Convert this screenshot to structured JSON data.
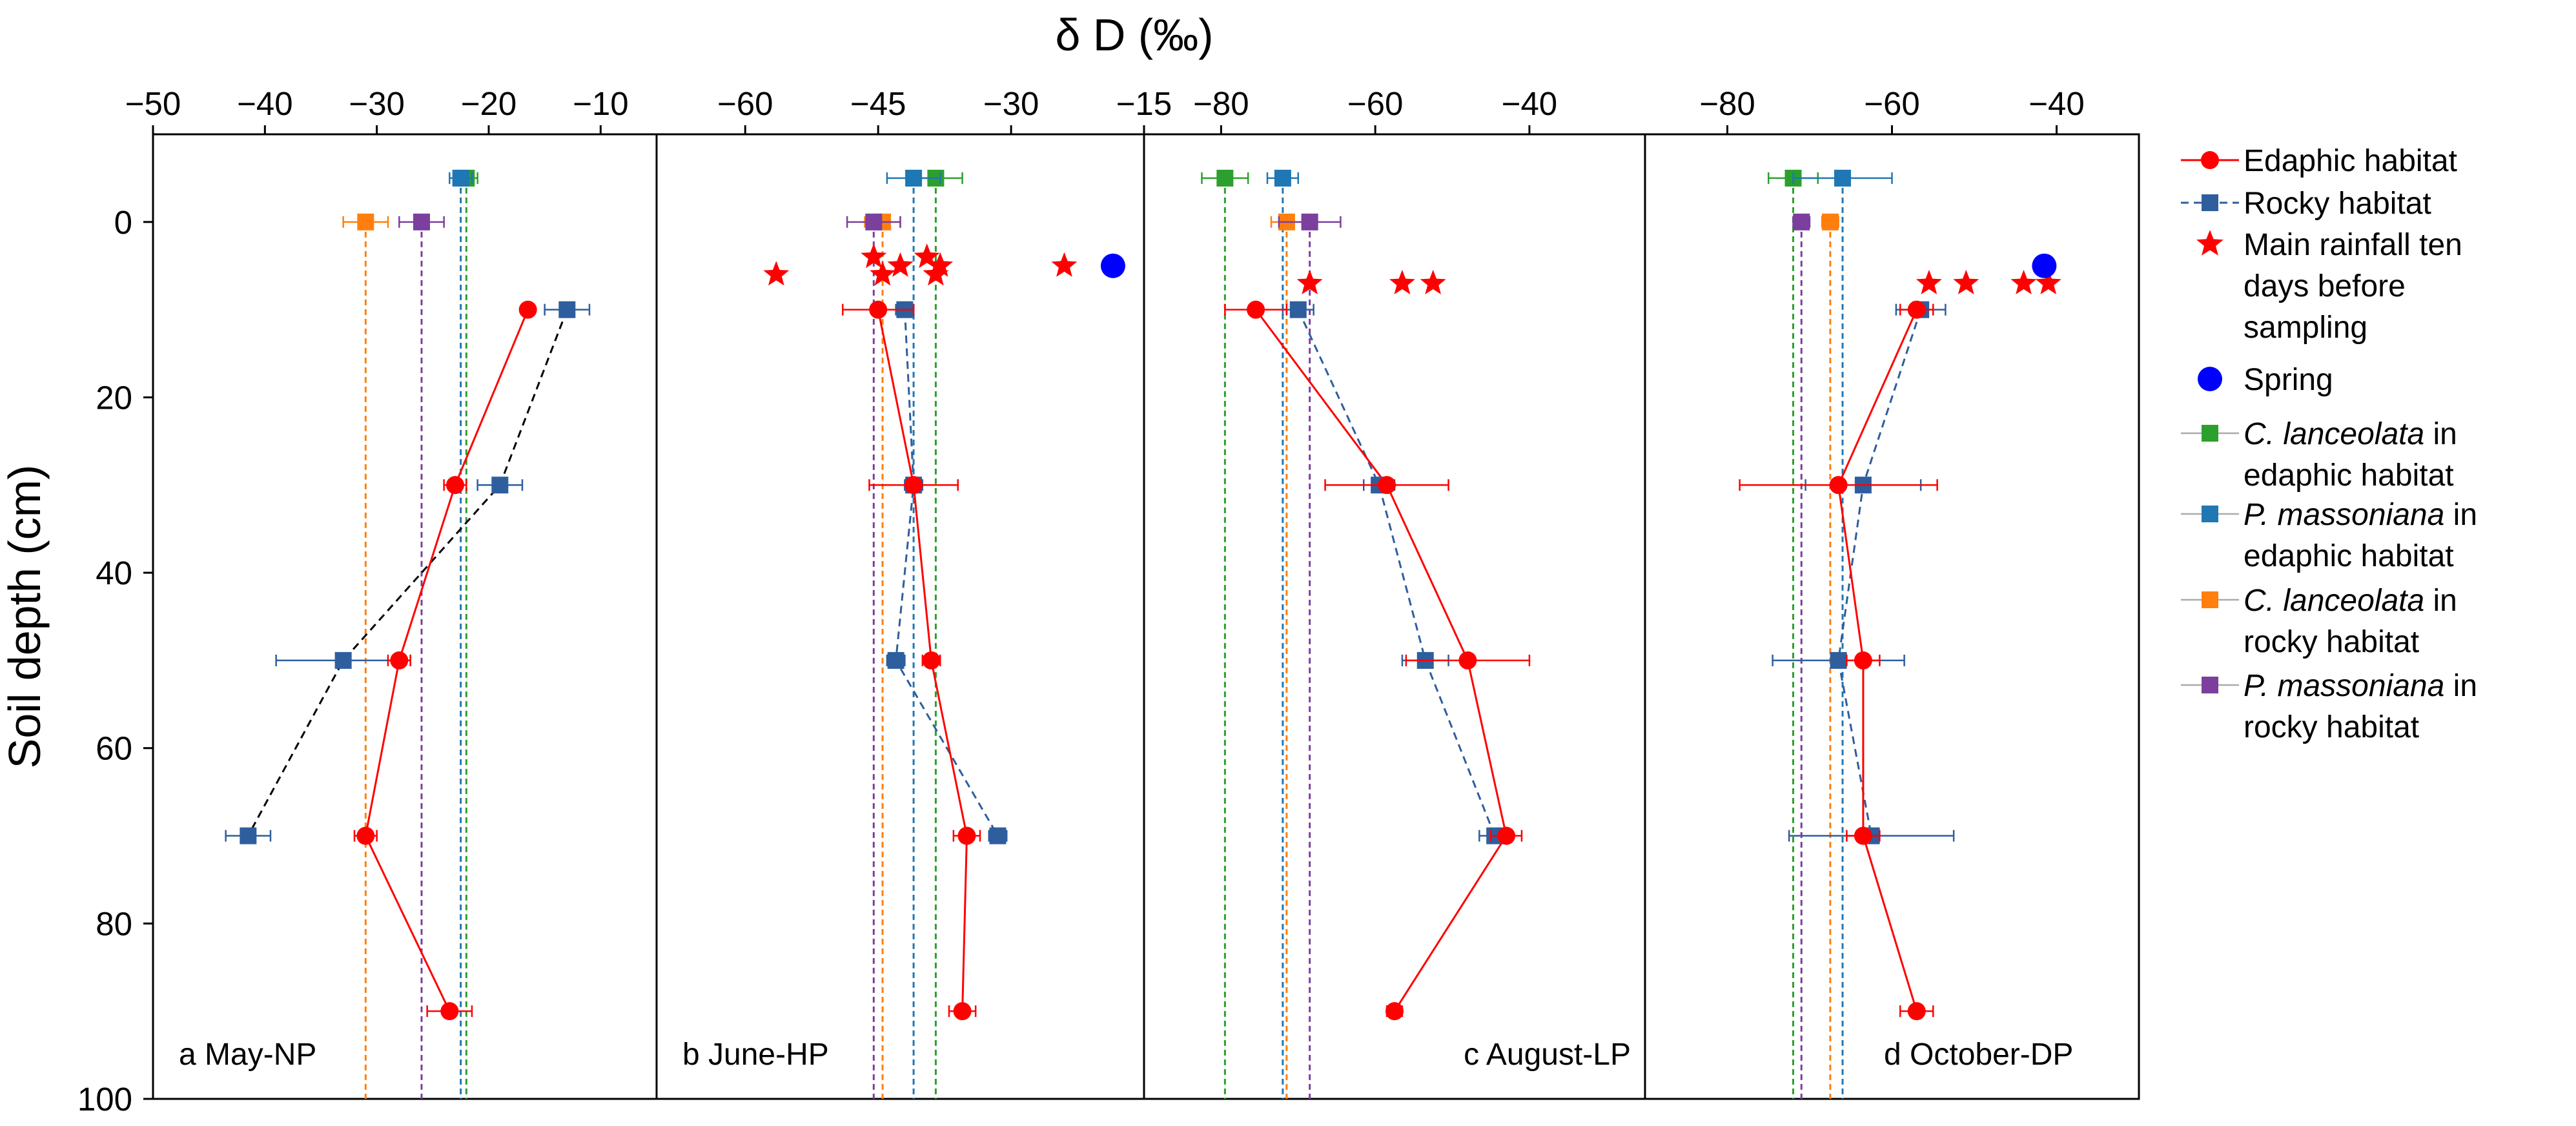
{
  "chart_data": {
    "type": "scatter",
    "x_axis_title": "δ D (‰)",
    "y_axis_title": "Soil depth (cm)",
    "ylim": [
      100,
      -10
    ],
    "y_ticks": [
      "0",
      "20",
      "40",
      "60",
      "80",
      "100"
    ],
    "y_tick_values": [
      0,
      20,
      40,
      60,
      80,
      100
    ],
    "colors": {
      "edaphic": "#ff0000",
      "rocky": "#2e5e9e",
      "c_lanceolata_edaphic": "#2ca02c",
      "p_massoniana_edaphic": "#1f77b4",
      "c_lanceolata_rocky": "#ff7f0e",
      "p_massoniana_rocky": "#7b3f9e",
      "spring": "#0000ff",
      "rainfall": "#ff0000"
    },
    "legend": [
      {
        "key": "edaphic",
        "text": [
          "Edaphic habitat"
        ]
      },
      {
        "key": "rocky",
        "text": [
          "Rocky habitat"
        ]
      },
      {
        "key": "rainfall",
        "text": [
          "Main rainfall  ten",
          "days before",
          "sampling"
        ]
      },
      {
        "key": "spring",
        "text": [
          "Spring"
        ]
      },
      {
        "key": "c_lanceolata_edaphic",
        "text": [
          "C. lanceolata",
          " in",
          "edaphic habitat"
        ]
      },
      {
        "key": "p_massoniana_edaphic",
        "text": [
          "P. massoniana",
          " in",
          "edaphic habitat"
        ]
      },
      {
        "key": "c_lanceolata_rocky",
        "text": [
          "C. lanceolata",
          " in",
          "rocky habitat"
        ]
      },
      {
        "key": "p_massoniana_rocky",
        "text": [
          "P. massoniana",
          " in",
          "rocky habitat"
        ]
      }
    ],
    "panels": [
      {
        "label": "a May-NP",
        "xlim": [
          -50,
          -5
        ],
        "x_ticks": [
          "−50",
          "−40",
          "−30",
          "−20",
          "−10"
        ],
        "x_tick_values": [
          -50,
          -40,
          -30,
          -20,
          -10
        ],
        "edaphic": {
          "depth": [
            10,
            30,
            50,
            70,
            90
          ],
          "dD": [
            -16.5,
            -23,
            -28,
            -31,
            -23.5
          ],
          "err": [
            0,
            1,
            1,
            1,
            2
          ]
        },
        "rocky": {
          "depth": [
            10,
            30,
            50,
            70
          ],
          "dD": [
            -13,
            -19,
            -33,
            -41.5
          ],
          "err": [
            2,
            2,
            6,
            2
          ]
        },
        "rocky_line": "dashed-black",
        "plants": {
          "c_lanceolata_edaphic": {
            "dD": -22,
            "depth": -5,
            "err": 1
          },
          "p_massoniana_edaphic": {
            "dD": -22.5,
            "depth": -5,
            "err": 1
          },
          "c_lanceolata_rocky": {
            "dD": -31,
            "depth": 0,
            "err": 2
          },
          "p_massoniana_rocky": {
            "dD": -26,
            "depth": 0,
            "err": 2
          }
        },
        "rainfall": {
          "dD": [],
          "depth": []
        },
        "spring": null
      },
      {
        "label": "b June-HP",
        "xlim": [
          -70,
          -15
        ],
        "x_ticks": [
          "−60",
          "−45",
          "−30",
          "−15"
        ],
        "x_tick_values": [
          -60,
          -45,
          -30,
          -15
        ],
        "edaphic": {
          "depth": [
            10,
            30,
            50,
            70,
            90
          ],
          "dD": [
            -45,
            -41,
            -39,
            -35,
            -35.5
          ],
          "err": [
            4,
            5,
            1,
            1.5,
            1.5
          ]
        },
        "rocky": {
          "depth": [
            10,
            30,
            50,
            70
          ],
          "dD": [
            -42,
            -41,
            -43,
            -31.5
          ],
          "err": [
            1,
            1,
            1,
            1
          ]
        },
        "rocky_line": "dashed-blue",
        "plants": {
          "c_lanceolata_edaphic": {
            "dD": -38.5,
            "depth": -5,
            "err": 3
          },
          "p_massoniana_edaphic": {
            "dD": -41,
            "depth": -5,
            "err": 3
          },
          "c_lanceolata_rocky": {
            "dD": -44.5,
            "depth": 0,
            "err": 2
          },
          "p_massoniana_rocky": {
            "dD": -45.5,
            "depth": 0,
            "err": 3
          }
        },
        "rainfall": {
          "dD": [
            -56.5,
            -45.5,
            -44.5,
            -42.5,
            -39.5,
            -38.5,
            -38,
            -24
          ],
          "depth": [
            6,
            4,
            6,
            5,
            4,
            6,
            5,
            5
          ]
        },
        "spring": {
          "dD": -18.5,
          "depth": 5
        }
      },
      {
        "label": "c August-LP",
        "xlim": [
          -90,
          -25
        ],
        "x_ticks": [
          "−80",
          "−60",
          "−40"
        ],
        "x_tick_values": [
          -80,
          -60,
          -40
        ],
        "edaphic": {
          "depth": [
            10,
            30,
            50,
            70,
            90
          ],
          "dD": [
            -75.5,
            -58.5,
            -48,
            -43,
            -57.5
          ],
          "err": [
            4,
            8,
            8,
            2,
            1
          ]
        },
        "rocky": {
          "depth": [
            10,
            30,
            50,
            70
          ],
          "dD": [
            -70,
            -59.5,
            -53.5,
            -44.5
          ],
          "err": [
            2,
            2,
            3,
            2
          ]
        },
        "rocky_line": "dashed-blue",
        "plants": {
          "c_lanceolata_edaphic": {
            "dD": -79.5,
            "depth": -5,
            "err": 3
          },
          "p_massoniana_edaphic": {
            "dD": -72,
            "depth": -5,
            "err": 2
          },
          "c_lanceolata_rocky": {
            "dD": -71.5,
            "depth": 0,
            "err": 2
          },
          "p_massoniana_rocky": {
            "dD": -68.5,
            "depth": 0,
            "err": 4
          }
        },
        "rainfall": {
          "dD": [
            -68.5,
            -56.5,
            -52.5
          ],
          "depth": [
            7,
            7,
            7
          ]
        },
        "spring": null
      },
      {
        "label": "d October-DP",
        "xlim": [
          -90,
          -30
        ],
        "x_ticks": [
          "−80",
          "−60",
          "−40"
        ],
        "x_tick_values": [
          -80,
          -60,
          -40
        ],
        "edaphic": {
          "depth": [
            10,
            30,
            50,
            70,
            90
          ],
          "dD": [
            -57,
            -66.5,
            -63.5,
            -63.5,
            -57
          ],
          "err": [
            2,
            12,
            2,
            2,
            2
          ]
        },
        "rocky": {
          "depth": [
            10,
            30,
            50,
            70
          ],
          "dD": [
            -56.5,
            -63.5,
            -66.5,
            -62.5
          ],
          "err": [
            3,
            7,
            8,
            10
          ]
        },
        "rocky_line": "dashed-blue",
        "plants": {
          "c_lanceolata_edaphic": {
            "dD": -72,
            "depth": -5,
            "err": 3
          },
          "p_massoniana_edaphic": {
            "dD": -66,
            "depth": -5,
            "err": 6
          },
          "c_lanceolata_rocky": {
            "dD": -67.5,
            "depth": 0,
            "err": 1
          },
          "p_massoniana_rocky": {
            "dD": -71,
            "depth": 0,
            "err": 1
          }
        },
        "rainfall": {
          "dD": [
            -55.5,
            -51,
            -44,
            -41
          ],
          "depth": [
            7,
            7,
            7,
            7
          ]
        },
        "spring": {
          "dD": -41.5,
          "depth": 5
        }
      }
    ]
  }
}
